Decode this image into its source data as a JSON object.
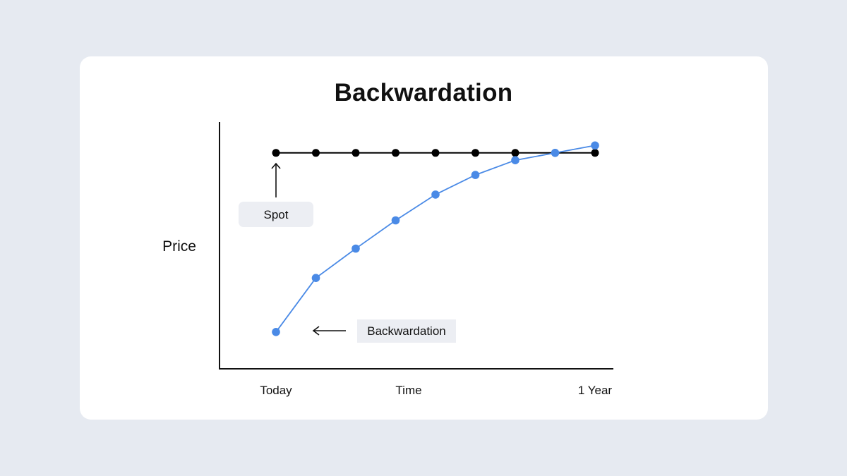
{
  "chart_data": {
    "type": "line",
    "title": "Backwardation",
    "ylabel": "Price",
    "xlabel": "Time",
    "x_tick_labels": {
      "start": "Today",
      "end": "1 Year"
    },
    "x": [
      0,
      1,
      2,
      3,
      4,
      5,
      6,
      7,
      8
    ],
    "xlim": [
      0,
      8
    ],
    "ylim": [
      0,
      100
    ],
    "grid": false,
    "series": [
      {
        "name": "Spot",
        "color": "#000000",
        "values": [
          88,
          88,
          88,
          88,
          88,
          88,
          88,
          88,
          88
        ]
      },
      {
        "name": "Backwardation",
        "color": "#4a8ae6",
        "values": [
          15,
          37,
          49,
          60.5,
          71,
          79,
          85,
          88,
          91
        ]
      }
    ],
    "annotations": [
      {
        "text": "Spot",
        "arrow": "up",
        "target_series": "Spot"
      },
      {
        "text": "Backwardation",
        "arrow": "left",
        "target_series": "Backwardation"
      }
    ]
  }
}
